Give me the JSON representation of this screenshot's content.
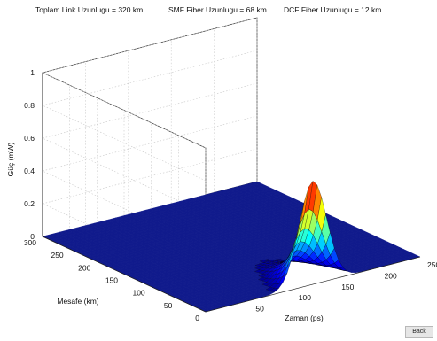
{
  "header": {
    "total_length": "Toplam Link Uzunlugu = 320 km",
    "smf_length": "SMF Fiber Uzunlugu = 68 km",
    "dcf_length": "DCF Fiber Uzunlugu = 12 km"
  },
  "back_label": "Back",
  "chart_data": {
    "type": "surface",
    "title": "",
    "xlabel": "Zaman (ps)",
    "ylabel": "Mesafe (km)",
    "zlabel": "Güç (mW)",
    "xlim": [
      0,
      250
    ],
    "ylim": [
      0,
      300
    ],
    "zlim": [
      0,
      1
    ],
    "x_ticks": [
      "50",
      "100",
      "150",
      "200",
      "250"
    ],
    "y_ticks": [
      "0",
      "50",
      "100",
      "150",
      "200",
      "250",
      "300"
    ],
    "z_ticks": [
      "0",
      "0.2",
      "0.4",
      "0.6",
      "0.8",
      "1"
    ],
    "grid": true,
    "colormap": "jet",
    "pulse": {
      "peak_power_mw": 0.63,
      "peak_time_ps": 125,
      "peak_distance_km": 0
    },
    "rest_power_mw": 0
  }
}
